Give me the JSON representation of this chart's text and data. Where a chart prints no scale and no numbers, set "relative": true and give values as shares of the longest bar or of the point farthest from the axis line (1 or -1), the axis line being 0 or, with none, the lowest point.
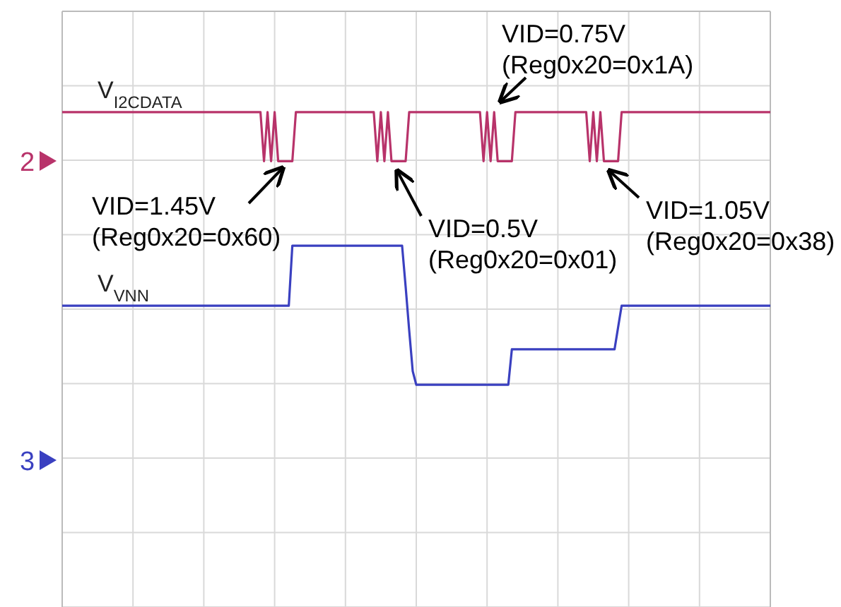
{
  "chart_data": {
    "type": "line",
    "relative": true,
    "grid": true,
    "marker": "none",
    "line_style": "solid",
    "categories": [
      null,
      null,
      null,
      null,
      null,
      null,
      null,
      null,
      null,
      null,
      null,
      null,
      null,
      null,
      null,
      null,
      null,
      null,
      null,
      null,
      null,
      null,
      null,
      null,
      null,
      null,
      null,
      null,
      null,
      null,
      null,
      null,
      null,
      null,
      null,
      null,
      null,
      null,
      null,
      null,
      null,
      null,
      null,
      null,
      null,
      null,
      null,
      null,
      null,
      null,
      null,
      null,
      null,
      null,
      null,
      null,
      null,
      null,
      null,
      null,
      null,
      null,
      null,
      null,
      null,
      null,
      null,
      null,
      null,
      null,
      null,
      null,
      null,
      null,
      null,
      null,
      null,
      null,
      null,
      null,
      null,
      null,
      null,
      null,
      null,
      null,
      null,
      null,
      null,
      null,
      null,
      null,
      null,
      null,
      null,
      null,
      null,
      null,
      null,
      null,
      null,
      null,
      null,
      null,
      null,
      null,
      null,
      null,
      null,
      null,
      null,
      null,
      null,
      null,
      null,
      null,
      null,
      null,
      null,
      null,
      null,
      null,
      null,
      null,
      null,
      null,
      null,
      null,
      null,
      null,
      null,
      null,
      null,
      null,
      null,
      null,
      null,
      null,
      null,
      null,
      null,
      null,
      null,
      null,
      null,
      null,
      null,
      null,
      null,
      null,
      null,
      null,
      null,
      null,
      null,
      null,
      null,
      null,
      null,
      null,
      null,
      null,
      null,
      null,
      null,
      null,
      null,
      null,
      null,
      null,
      null,
      null,
      null,
      null,
      null,
      null,
      null,
      null,
      null,
      null,
      null,
      null,
      null,
      null,
      null,
      null,
      null,
      null,
      null,
      null,
      null,
      null,
      null,
      null,
      null,
      null,
      null,
      null,
      null,
      null,
      null
    ],
    "series": [
      {
        "name": "V$_{I2CDATA}$",
        "color": "#b8336a",
        "values": [
          1,
          1,
          1,
          1,
          1,
          1,
          1,
          1,
          1,
          1,
          1,
          1,
          1,
          1,
          1,
          1,
          1,
          1,
          1,
          1,
          1,
          1,
          1,
          1,
          1,
          1,
          1,
          1,
          1,
          1,
          1,
          1,
          1,
          1,
          1,
          1,
          1,
          1,
          1,
          1,
          1,
          1,
          1,
          1,
          1,
          1,
          1,
          1,
          1,
          1,
          1,
          1,
          1,
          1,
          1,
          1,
          1,
          0.82,
          1,
          0.82,
          1,
          0.82,
          0.82,
          0.82,
          0.82,
          0.82,
          1,
          1,
          1,
          1,
          1,
          1,
          1,
          1,
          1,
          1,
          1,
          1,
          1,
          1,
          1,
          1,
          1,
          1,
          1,
          1,
          1,
          1,
          1,
          0.82,
          1,
          0.82,
          1,
          0.82,
          0.82,
          0.82,
          0.82,
          0.82,
          1,
          1,
          1,
          1,
          1,
          1,
          1,
          1,
          1,
          1,
          1,
          1,
          1,
          1,
          1,
          1,
          1,
          1,
          1,
          1,
          1,
          0.82,
          1,
          0.82,
          1,
          0.82,
          0.82,
          0.82,
          0.82,
          0.82,
          1,
          1,
          1,
          1,
          1,
          1,
          1,
          1,
          1,
          1,
          1,
          1,
          1,
          1,
          1,
          1,
          1,
          1,
          1,
          1,
          1,
          0.82,
          1,
          0.82,
          1,
          0.82,
          0.82,
          0.82,
          0.82,
          0.82,
          1,
          1,
          1,
          1,
          1,
          1,
          1,
          1,
          1,
          1,
          1,
          1,
          1,
          1,
          1,
          1,
          1,
          1,
          1,
          1,
          1,
          1,
          1,
          1,
          1,
          1,
          1,
          1,
          1,
          1,
          1,
          1,
          1,
          1,
          1,
          1,
          1,
          1,
          1,
          1,
          1,
          1,
          1
        ]
      },
      {
        "name": "V$_{VNN}$",
        "color": "#3a40c0",
        "values": [
          0.29,
          0.29,
          0.29,
          0.29,
          0.29,
          0.29,
          0.29,
          0.29,
          0.29,
          0.29,
          0.29,
          0.29,
          0.29,
          0.29,
          0.29,
          0.29,
          0.29,
          0.29,
          0.29,
          0.29,
          0.29,
          0.29,
          0.29,
          0.29,
          0.29,
          0.29,
          0.29,
          0.29,
          0.29,
          0.29,
          0.29,
          0.29,
          0.29,
          0.29,
          0.29,
          0.29,
          0.29,
          0.29,
          0.29,
          0.29,
          0.29,
          0.29,
          0.29,
          0.29,
          0.29,
          0.29,
          0.29,
          0.29,
          0.29,
          0.29,
          0.29,
          0.29,
          0.29,
          0.29,
          0.29,
          0.29,
          0.29,
          0.29,
          0.29,
          0.29,
          0.29,
          0.29,
          0.29,
          0.29,
          0.29,
          0.51,
          0.51,
          0.51,
          0.51,
          0.51,
          0.51,
          0.51,
          0.51,
          0.51,
          0.51,
          0.51,
          0.51,
          0.51,
          0.51,
          0.51,
          0.51,
          0.51,
          0.51,
          0.51,
          0.51,
          0.51,
          0.51,
          0.51,
          0.51,
          0.51,
          0.51,
          0.51,
          0.51,
          0.51,
          0.51,
          0.51,
          0.51,
          0.36,
          0.2,
          0.05,
          0,
          0,
          0,
          0,
          0,
          0,
          0,
          0,
          0,
          0,
          0,
          0,
          0,
          0,
          0,
          0,
          0,
          0,
          0,
          0,
          0,
          0,
          0,
          0,
          0,
          0,
          0,
          0.13,
          0.13,
          0.13,
          0.13,
          0.13,
          0.13,
          0.13,
          0.13,
          0.13,
          0.13,
          0.13,
          0.13,
          0.13,
          0.13,
          0.13,
          0.13,
          0.13,
          0.13,
          0.13,
          0.13,
          0.13,
          0.13,
          0.13,
          0.13,
          0.13,
          0.13,
          0.13,
          0.13,
          0.13,
          0.13,
          0.21,
          0.29,
          0.29,
          0.29,
          0.29,
          0.29,
          0.29,
          0.29,
          0.29,
          0.29,
          0.29,
          0.29,
          0.29,
          0.29,
          0.29,
          0.29,
          0.29,
          0.29,
          0.29,
          0.29,
          0.29,
          0.29,
          0.29,
          0.29,
          0.29,
          0.29,
          0.29,
          0.29,
          0.29,
          0.29,
          0.29,
          0.29,
          0.29,
          0.29,
          0.29,
          0.29,
          0.29,
          0.29,
          0.29,
          0.29,
          0.29,
          0.29,
          0.29,
          0.29
        ]
      }
    ],
    "annotations": [
      "VID=1.45V\n(Reg0x20=0x60)",
      "VID=0.5V\n(Reg0x20=0x01)",
      "VID=0.75V\n(Reg0x20=0x1A)",
      "VID=1.05V\n(Reg0x20=0x38)",
      "2",
      "3"
    ]
  }
}
